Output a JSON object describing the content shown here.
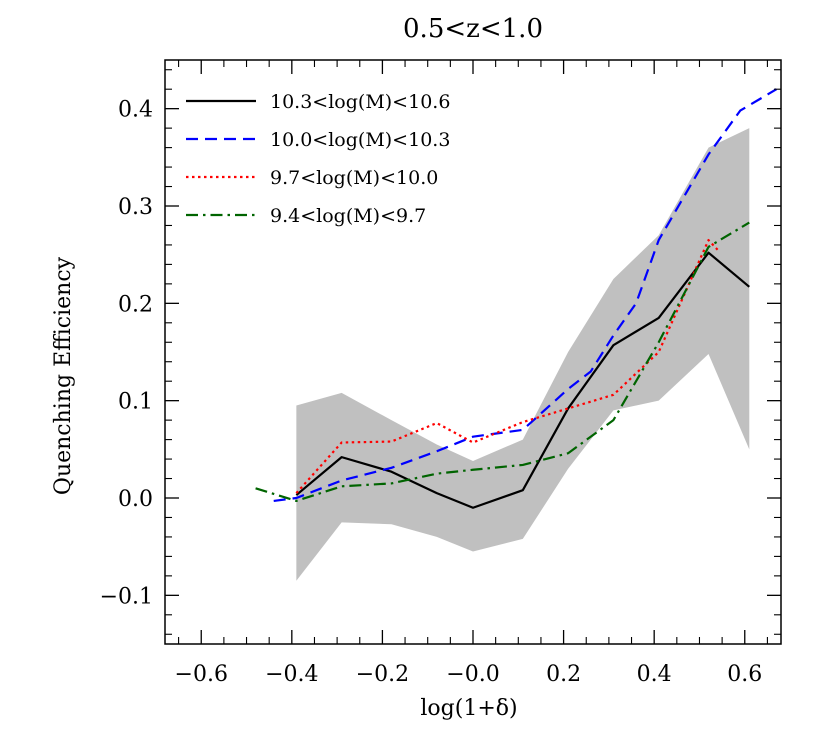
{
  "chart_data": {
    "type": "line",
    "title": "0.5<z<1.0",
    "xlabel": "log(1+δ)",
    "ylabel": "Quenching Efficiency",
    "xlim": [
      -0.68,
      0.68
    ],
    "ylim": [
      -0.15,
      0.45
    ],
    "x_ticks": [
      -0.6,
      -0.4,
      -0.2,
      -0.0,
      0.2,
      0.4,
      0.6
    ],
    "x_tick_labels": [
      "−0.6",
      "−0.4",
      "−0.2",
      "−0.0",
      "0.2",
      "0.4",
      "0.6"
    ],
    "y_ticks": [
      -0.1,
      0.0,
      0.1,
      0.2,
      0.3,
      0.4
    ],
    "y_tick_labels": [
      "−0.1",
      "0.0",
      "0.1",
      "0.2",
      "0.3",
      "0.4"
    ],
    "legend_position": "top-left",
    "shaded_band": {
      "color": "#c0c0c0",
      "x": [
        -0.39,
        -0.29,
        -0.18,
        -0.08,
        0.0,
        0.11,
        0.21,
        0.31,
        0.41,
        0.52,
        0.61
      ],
      "upper": [
        0.095,
        0.108,
        0.08,
        0.055,
        0.038,
        0.06,
        0.15,
        0.225,
        0.27,
        0.36,
        0.38
      ],
      "lower": [
        -0.085,
        -0.025,
        -0.027,
        -0.04,
        -0.055,
        -0.042,
        0.03,
        0.09,
        0.1,
        0.148,
        0.05
      ]
    },
    "series": [
      {
        "name": "10.3<log(M)<10.6",
        "color": "#000000",
        "dash": "solid",
        "x": [
          -0.39,
          -0.29,
          -0.18,
          -0.08,
          0.0,
          0.11,
          0.21,
          0.31,
          0.41,
          0.52,
          0.61
        ],
        "y": [
          0.003,
          0.042,
          0.027,
          0.005,
          -0.01,
          0.008,
          0.092,
          0.157,
          0.185,
          0.252,
          0.217
        ]
      },
      {
        "name": "10.0<log(M)<10.3",
        "color": "#0000ff",
        "dash": "dashed",
        "x": [
          -0.44,
          -0.39,
          -0.29,
          -0.18,
          -0.08,
          0.0,
          0.11,
          0.21,
          0.26,
          0.31,
          0.36,
          0.41,
          0.52,
          0.59,
          0.67
        ],
        "y": [
          -0.003,
          0.0,
          0.018,
          0.031,
          0.048,
          0.063,
          0.07,
          0.112,
          0.13,
          0.167,
          0.2,
          0.265,
          0.353,
          0.398,
          0.42
        ]
      },
      {
        "name": "9.7<log(M)<10.0",
        "color": "#ff0000",
        "dash": "dotted",
        "x": [
          -0.39,
          -0.29,
          -0.18,
          -0.08,
          0.0,
          0.11,
          0.21,
          0.31,
          0.41,
          0.52,
          0.54
        ],
        "y": [
          0.005,
          0.057,
          0.058,
          0.077,
          0.057,
          0.078,
          0.092,
          0.106,
          0.15,
          0.265,
          0.255
        ]
      },
      {
        "name": "9.4<log(M)<9.7",
        "color": "#006400",
        "dash": "dashdot",
        "x": [
          -0.48,
          -0.39,
          -0.29,
          -0.18,
          -0.08,
          0.0,
          0.11,
          0.21,
          0.31,
          0.41,
          0.52,
          0.61
        ],
        "y": [
          0.01,
          -0.003,
          0.012,
          0.015,
          0.025,
          0.029,
          0.034,
          0.046,
          0.08,
          0.16,
          0.258,
          0.283
        ]
      }
    ]
  }
}
